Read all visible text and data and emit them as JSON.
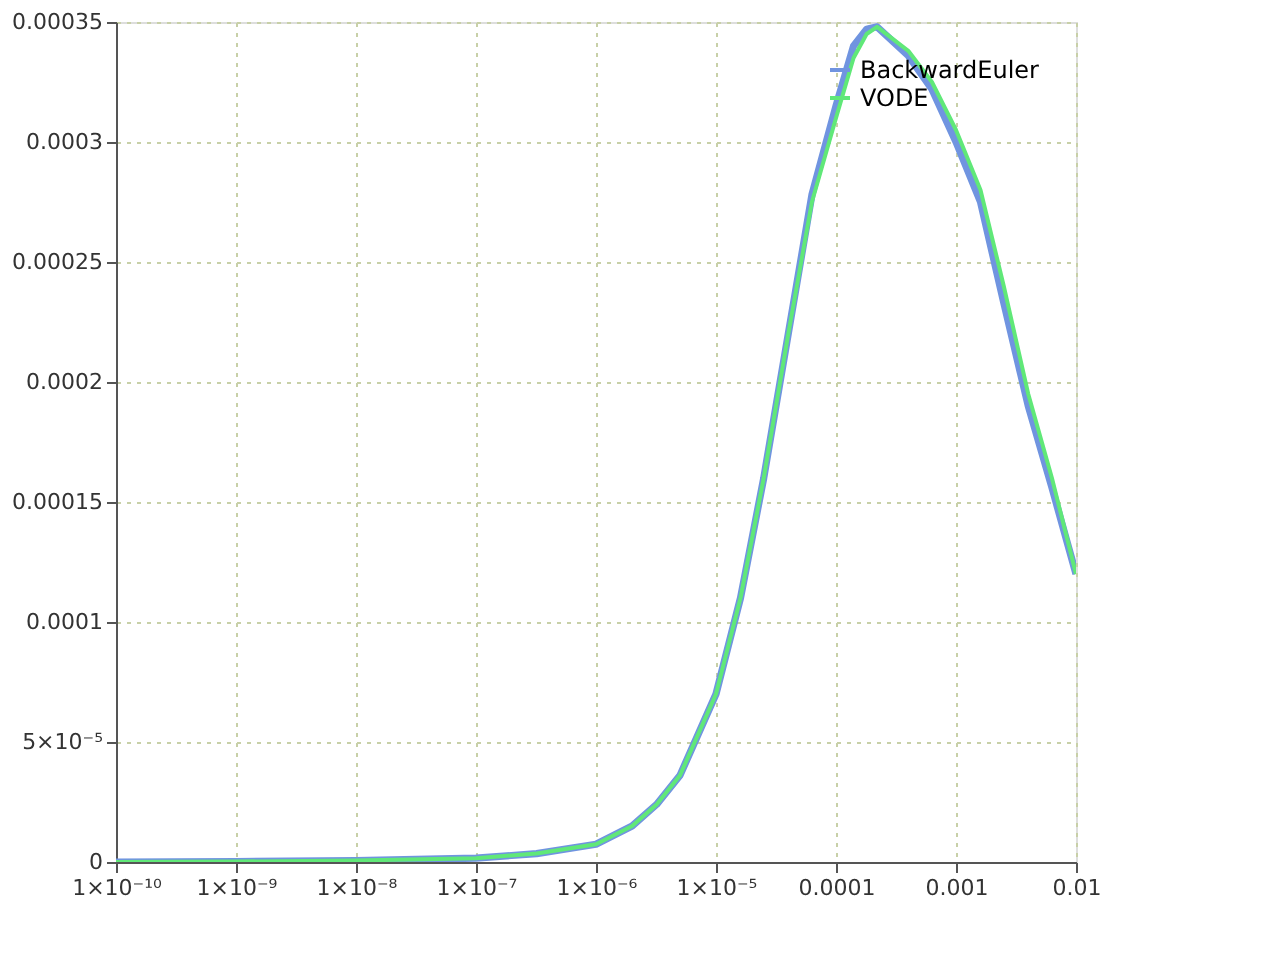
{
  "chart_data": {
    "type": "line",
    "log": "x",
    "grid": true,
    "legend": "top right",
    "line_style": "solid",
    "marker": "none",
    "xlim": [
      1e-10,
      0.01
    ],
    "xticks": [
      {
        "value": 1e-10,
        "label": "1×10⁻¹⁰"
      },
      {
        "value": 1e-09,
        "label": "1×10⁻⁹"
      },
      {
        "value": 1e-08,
        "label": "1×10⁻⁸"
      },
      {
        "value": 1e-07,
        "label": "1×10⁻⁷"
      },
      {
        "value": 1e-06,
        "label": "1×10⁻⁶"
      },
      {
        "value": 1e-05,
        "label": "1×10⁻⁵"
      },
      0.0001,
      0.001,
      0.01
    ],
    "ylim": [
      0,
      0.00035
    ],
    "yticks": [
      0,
      {
        "value": 5e-05,
        "label": "5×10⁻⁵"
      },
      0.0001,
      0.00015,
      0.0002,
      0.00025,
      0.0003,
      0.00035
    ],
    "series": [
      {
        "name": "BackwardEuler",
        "color": "#7094e0",
        "x": [
          1e-10,
          1e-09,
          1e-08,
          1e-07,
          3.2e-07,
          1e-06,
          2e-06,
          3.2e-06,
          5e-06,
          1e-05,
          1.6e-05,
          2.5e-05,
          4e-05,
          6.3e-05,
          0.0001,
          0.00014,
          0.00018,
          0.00022,
          0.0004,
          0.00063,
          0.001,
          0.0016,
          0.0025,
          0.004,
          0.0063,
          0.01
        ],
        "values": [
          0,
          2e-07,
          6e-07,
          1.6e-06,
          3.5e-06,
          7.4e-06,
          1.5e-05,
          2.4e-05,
          3.6e-05,
          7e-05,
          0.00011,
          0.00016,
          0.00022,
          0.000278,
          0.000315,
          0.00034,
          0.000347,
          0.000348,
          0.000336,
          0.000322,
          0.0003,
          0.000275,
          0.000233,
          0.00019,
          0.000156,
          0.00012
        ]
      },
      {
        "name": "VODE",
        "color": "#60e878",
        "x": [
          1e-10,
          1e-09,
          1e-08,
          1e-07,
          3.2e-07,
          1e-06,
          2e-06,
          3.2e-06,
          5e-06,
          1e-05,
          1.6e-05,
          2.5e-05,
          4e-05,
          6.3e-05,
          0.0001,
          0.00014,
          0.00018,
          0.00022,
          0.0004,
          0.00063,
          0.001,
          0.0016,
          0.0025,
          0.004,
          0.0063,
          0.01
        ],
        "values": [
          0,
          2e-07,
          6e-07,
          1.6e-06,
          3.5e-06,
          7.4e-06,
          1.5e-05,
          2.4e-05,
          3.6e-05,
          7e-05,
          0.00011,
          0.00016,
          0.00022,
          0.000275,
          0.00031,
          0.000335,
          0.000345,
          0.000348,
          0.000338,
          0.000325,
          0.000305,
          0.00028,
          0.00024,
          0.000195,
          0.00016,
          0.00012
        ]
      }
    ]
  }
}
